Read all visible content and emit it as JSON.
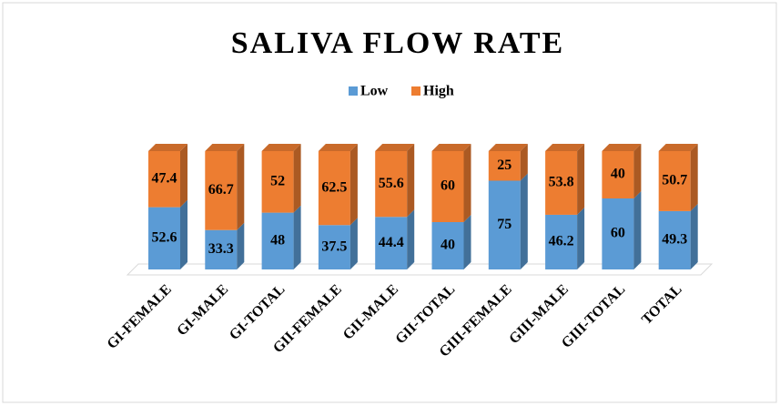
{
  "chart_data": {
    "type": "stacked-bar-3d",
    "title": "SALIVA FLOW RATE",
    "categories": [
      "GI-FEMALE",
      "GI-MALE",
      "GI-TOTAL",
      "GII-FEMALE",
      "GII-MALE",
      "GII-TOTAL",
      "GIII-FEMALE",
      "GIII-MALE",
      "GIII-TOTAL",
      "TOTAL"
    ],
    "series": [
      {
        "name": "Low",
        "color": "#5b9bd5",
        "values": [
          52.6,
          33.3,
          48,
          37.5,
          44.4,
          40,
          75,
          46.2,
          60,
          49.3
        ]
      },
      {
        "name": "High",
        "color": "#ed7d31",
        "values": [
          47.4,
          66.7,
          52,
          62.5,
          55.6,
          60,
          25,
          53.8,
          40,
          50.7
        ]
      }
    ]
  }
}
